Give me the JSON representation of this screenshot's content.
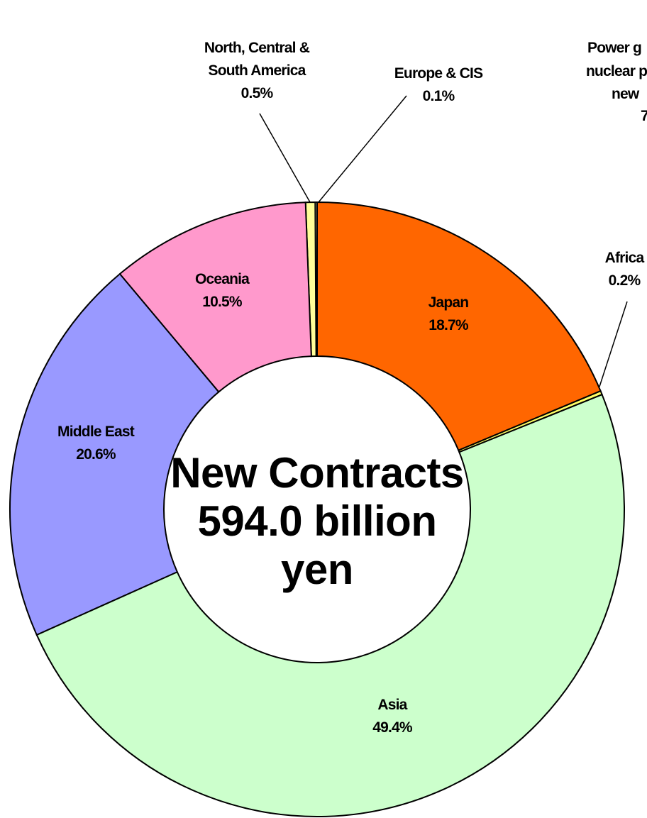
{
  "chart_data": {
    "type": "donut",
    "center_text": "New Contracts 594.0 billion yen",
    "categories": [
      "Japan",
      "Africa",
      "Asia",
      "Middle East",
      "Oceania",
      "North, Central & South America",
      "Europe & CIS"
    ],
    "values": [
      18.7,
      0.2,
      49.4,
      20.6,
      10.5,
      0.5,
      0.1
    ],
    "value_labels": [
      "18.7%",
      "0.2%",
      "49.4%",
      "20.6%",
      "10.5%",
      "0.5%",
      "0.1%"
    ],
    "colors": [
      "#ff6600",
      "#ffff66",
      "#ccffcc",
      "#9999ff",
      "#ff99cc",
      "#ffff99",
      "#ffffcc"
    ],
    "annotations": [
      "Power g",
      "nuclear p",
      "new",
      "7"
    ]
  }
}
